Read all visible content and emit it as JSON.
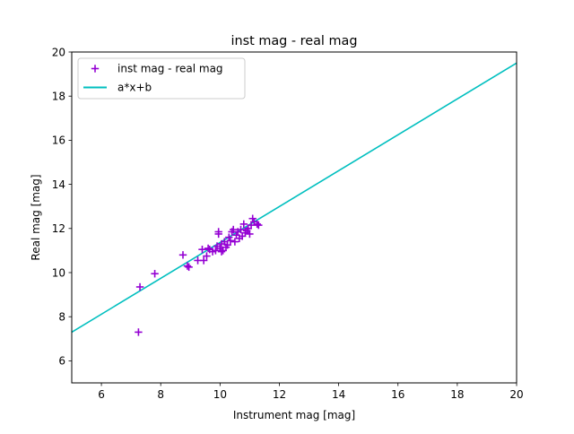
{
  "chart_data": {
    "type": "scatter",
    "title": "inst mag - real mag",
    "xlabel": "Instrument mag [mag]",
    "ylabel": "Real mag [mag]",
    "xlim": [
      5,
      20
    ],
    "ylim": [
      5,
      20
    ],
    "xticks": [
      6,
      8,
      10,
      12,
      14,
      16,
      18,
      20
    ],
    "yticks": [
      6,
      8,
      10,
      12,
      14,
      16,
      18,
      20
    ],
    "grid": false,
    "legend_position": "top-left",
    "series": [
      {
        "name": "inst mag - real mag",
        "kind": "scatter",
        "marker": "plus",
        "color": "#9400d3",
        "points": [
          [
            7.25,
            7.3
          ],
          [
            7.3,
            9.35
          ],
          [
            7.8,
            9.95
          ],
          [
            8.75,
            10.8
          ],
          [
            8.9,
            10.3
          ],
          [
            8.95,
            10.25
          ],
          [
            9.25,
            10.55
          ],
          [
            9.4,
            11.05
          ],
          [
            9.45,
            10.55
          ],
          [
            9.55,
            10.75
          ],
          [
            9.6,
            11.1
          ],
          [
            9.65,
            11.05
          ],
          [
            9.75,
            10.95
          ],
          [
            9.85,
            11.0
          ],
          [
            9.9,
            11.2
          ],
          [
            9.95,
            11.85
          ],
          [
            9.95,
            11.75
          ],
          [
            10.0,
            11.1
          ],
          [
            10.05,
            11.3
          ],
          [
            10.05,
            10.95
          ],
          [
            10.1,
            11.0
          ],
          [
            10.15,
            11.4
          ],
          [
            10.2,
            11.15
          ],
          [
            10.25,
            11.25
          ],
          [
            10.3,
            11.6
          ],
          [
            10.35,
            11.45
          ],
          [
            10.4,
            11.85
          ],
          [
            10.45,
            11.95
          ],
          [
            10.5,
            11.4
          ],
          [
            10.55,
            11.7
          ],
          [
            10.6,
            11.85
          ],
          [
            10.65,
            11.55
          ],
          [
            10.7,
            11.95
          ],
          [
            10.75,
            11.65
          ],
          [
            10.8,
            12.2
          ],
          [
            10.85,
            11.8
          ],
          [
            10.9,
            11.9
          ],
          [
            10.95,
            12.0
          ],
          [
            11.0,
            11.75
          ],
          [
            11.05,
            12.15
          ],
          [
            11.1,
            12.45
          ],
          [
            11.15,
            12.3
          ],
          [
            11.25,
            12.2
          ],
          [
            11.3,
            12.15
          ]
        ]
      },
      {
        "name": "a*x+b",
        "kind": "line",
        "color": "#00bfbf",
        "points": [
          [
            5,
            7.3
          ],
          [
            20,
            19.5
          ]
        ]
      }
    ]
  }
}
